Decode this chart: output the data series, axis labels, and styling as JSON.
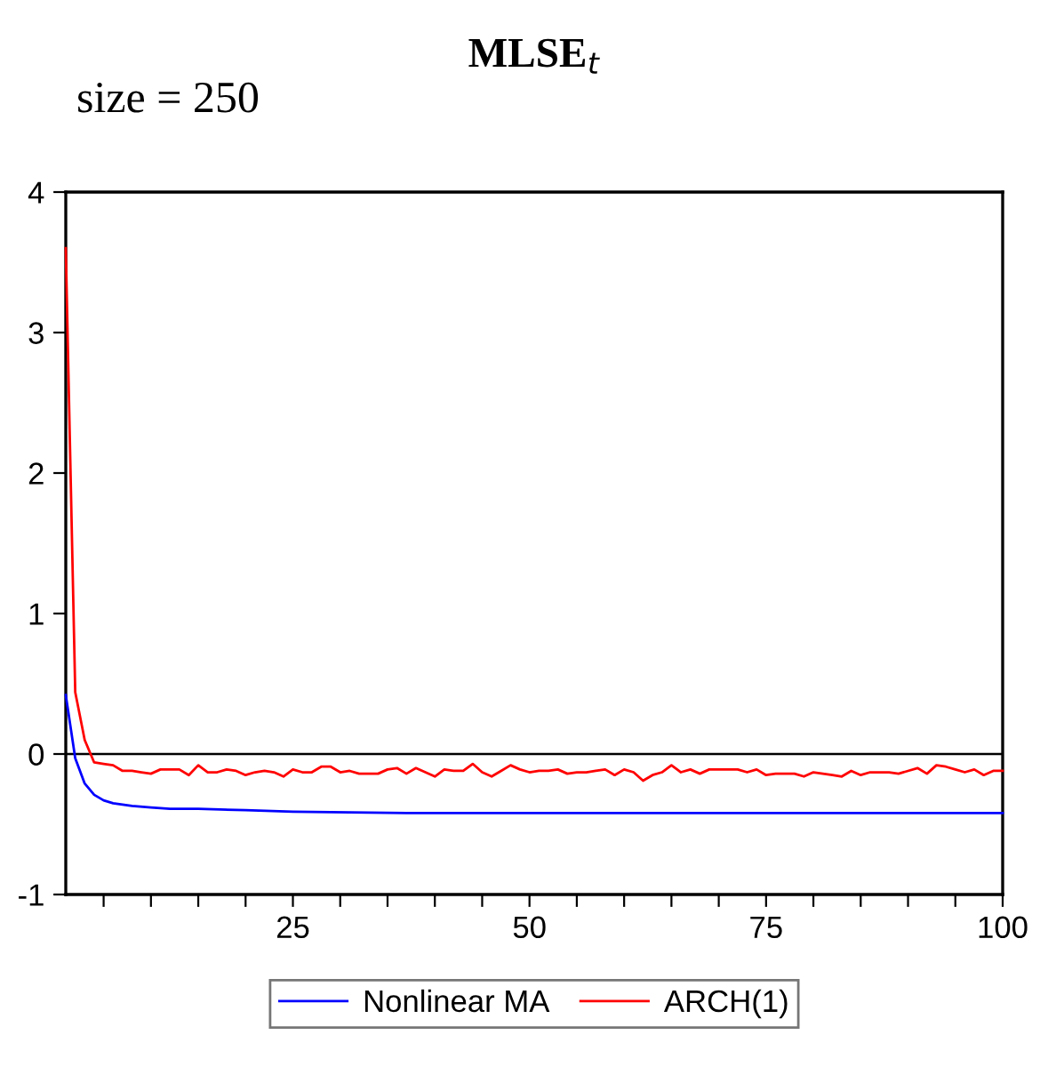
{
  "chart_data": {
    "type": "line",
    "title": "MLSE$_{t}$",
    "subtitle": "size = 250",
    "xlim": [
      1,
      100
    ],
    "xticks": [
      {
        "value": 5,
        "label": null
      },
      {
        "value": 10,
        "label": null
      },
      {
        "value": 15,
        "label": null
      },
      {
        "value": 20,
        "label": null
      },
      25,
      {
        "value": 30,
        "label": null
      },
      {
        "value": 35,
        "label": null
      },
      {
        "value": 40,
        "label": null
      },
      {
        "value": 45,
        "label": null
      },
      50,
      {
        "value": 55,
        "label": null
      },
      {
        "value": 60,
        "label": null
      },
      {
        "value": 65,
        "label": null
      },
      {
        "value": 70,
        "label": null
      },
      75,
      {
        "value": 80,
        "label": null
      },
      {
        "value": 85,
        "label": null
      },
      {
        "value": 90,
        "label": null
      },
      {
        "value": 95,
        "label": null
      },
      100
    ],
    "ylim": [
      -1,
      4
    ],
    "yticks": [
      -1,
      0,
      1,
      2,
      3,
      4
    ],
    "grid": false,
    "legend": "bottom",
    "marker": "none",
    "line_style": "solid",
    "ref_lines": [
      {
        "axis": "y",
        "value": 0,
        "color": "#000000"
      }
    ],
    "series": [
      {
        "name": "Nonlinear MA",
        "color": "#0000ff",
        "x": [
          1,
          2,
          3,
          4,
          5,
          6,
          7,
          8,
          10,
          12,
          15,
          20,
          25,
          37,
          50,
          75,
          100
        ],
        "values": [
          0.42,
          -0.03,
          -0.21,
          -0.29,
          -0.33,
          -0.35,
          -0.36,
          -0.37,
          -0.38,
          -0.39,
          -0.39,
          -0.4,
          -0.41,
          -0.42,
          -0.42,
          -0.42,
          -0.42
        ]
      },
      {
        "name": "ARCH(1)",
        "color": "#ff0000",
        "x": [
          1,
          2,
          3,
          4,
          5,
          6,
          7,
          8,
          9,
          10,
          11,
          12,
          13,
          14,
          15,
          16,
          17,
          18,
          19,
          20,
          21,
          22,
          23,
          24,
          25,
          26,
          27,
          28,
          29,
          30,
          31,
          32,
          33,
          34,
          35,
          36,
          37,
          38,
          39,
          40,
          41,
          42,
          43,
          44,
          45,
          46,
          47,
          48,
          49,
          50,
          51,
          52,
          53,
          54,
          55,
          56,
          57,
          58,
          59,
          60,
          61,
          62,
          63,
          64,
          65,
          66,
          67,
          68,
          69,
          70,
          71,
          72,
          73,
          74,
          75,
          76,
          77,
          78,
          79,
          80,
          81,
          82,
          83,
          84,
          85,
          86,
          87,
          88,
          89,
          90,
          91,
          92,
          93,
          94,
          95,
          96,
          97,
          98,
          99,
          100
        ],
        "values": [
          3.6,
          0.44,
          0.1,
          -0.06,
          -0.07,
          -0.08,
          -0.12,
          -0.12,
          -0.13,
          -0.14,
          -0.11,
          -0.11,
          -0.11,
          -0.15,
          -0.08,
          -0.13,
          -0.13,
          -0.11,
          -0.12,
          -0.15,
          -0.13,
          -0.12,
          -0.13,
          -0.16,
          -0.11,
          -0.13,
          -0.13,
          -0.09,
          -0.09,
          -0.13,
          -0.12,
          -0.14,
          -0.14,
          -0.14,
          -0.11,
          -0.1,
          -0.14,
          -0.1,
          -0.13,
          -0.16,
          -0.11,
          -0.12,
          -0.12,
          -0.07,
          -0.13,
          -0.16,
          -0.12,
          -0.08,
          -0.11,
          -0.13,
          -0.12,
          -0.12,
          -0.11,
          -0.14,
          -0.13,
          -0.13,
          -0.12,
          -0.11,
          -0.15,
          -0.11,
          -0.13,
          -0.19,
          -0.15,
          -0.13,
          -0.08,
          -0.13,
          -0.11,
          -0.14,
          -0.11,
          -0.11,
          -0.11,
          -0.11,
          -0.13,
          -0.11,
          -0.15,
          -0.14,
          -0.14,
          -0.14,
          -0.16,
          -0.13,
          -0.14,
          -0.15,
          -0.16,
          -0.12,
          -0.15,
          -0.13,
          -0.13,
          -0.13,
          -0.14,
          -0.12,
          -0.1,
          -0.14,
          -0.08,
          -0.09,
          -0.11,
          -0.13,
          -0.11,
          -0.15,
          -0.12,
          -0.12
        ]
      }
    ]
  }
}
